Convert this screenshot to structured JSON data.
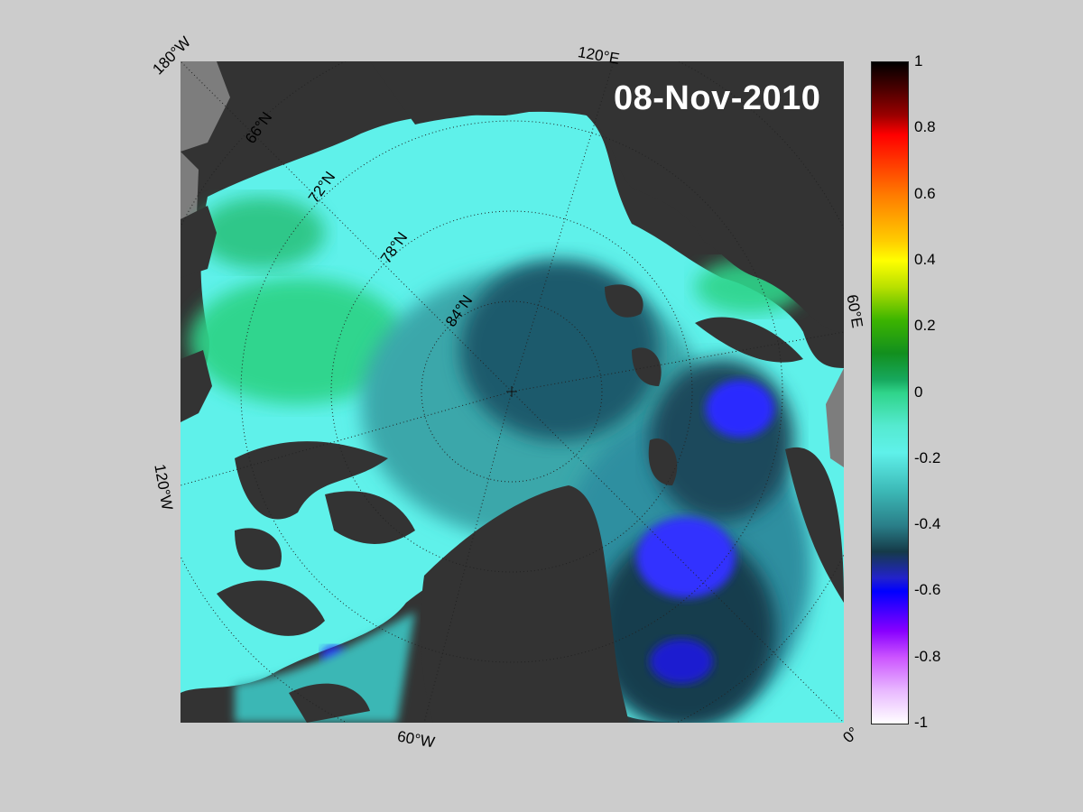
{
  "date": "08-Nov-2010",
  "longitude_labels": [
    "180°W",
    "120°E",
    "60°E",
    "0°",
    "60°W",
    "120°W"
  ],
  "latitude_labels": [
    "66°N",
    "72°N",
    "78°N",
    "84°N"
  ],
  "colorbar": {
    "ticks": [
      "1",
      "0.8",
      "0.6",
      "0.4",
      "0.2",
      "0",
      "-0.2",
      "-0.4",
      "-0.6",
      "-0.8",
      "-1"
    ],
    "range": [
      -1,
      1
    ]
  },
  "colors": {
    "background": "#cccccc",
    "land": "#333333",
    "high_lat_land": "#7d7d7d",
    "ocean_low": "#5ff1ea",
    "ocean_mid": "#2a7f89",
    "ocean_deep": "#173d4d",
    "anomaly_neg": "#2a2aff",
    "anomaly_pos": "#2fc98a"
  }
}
